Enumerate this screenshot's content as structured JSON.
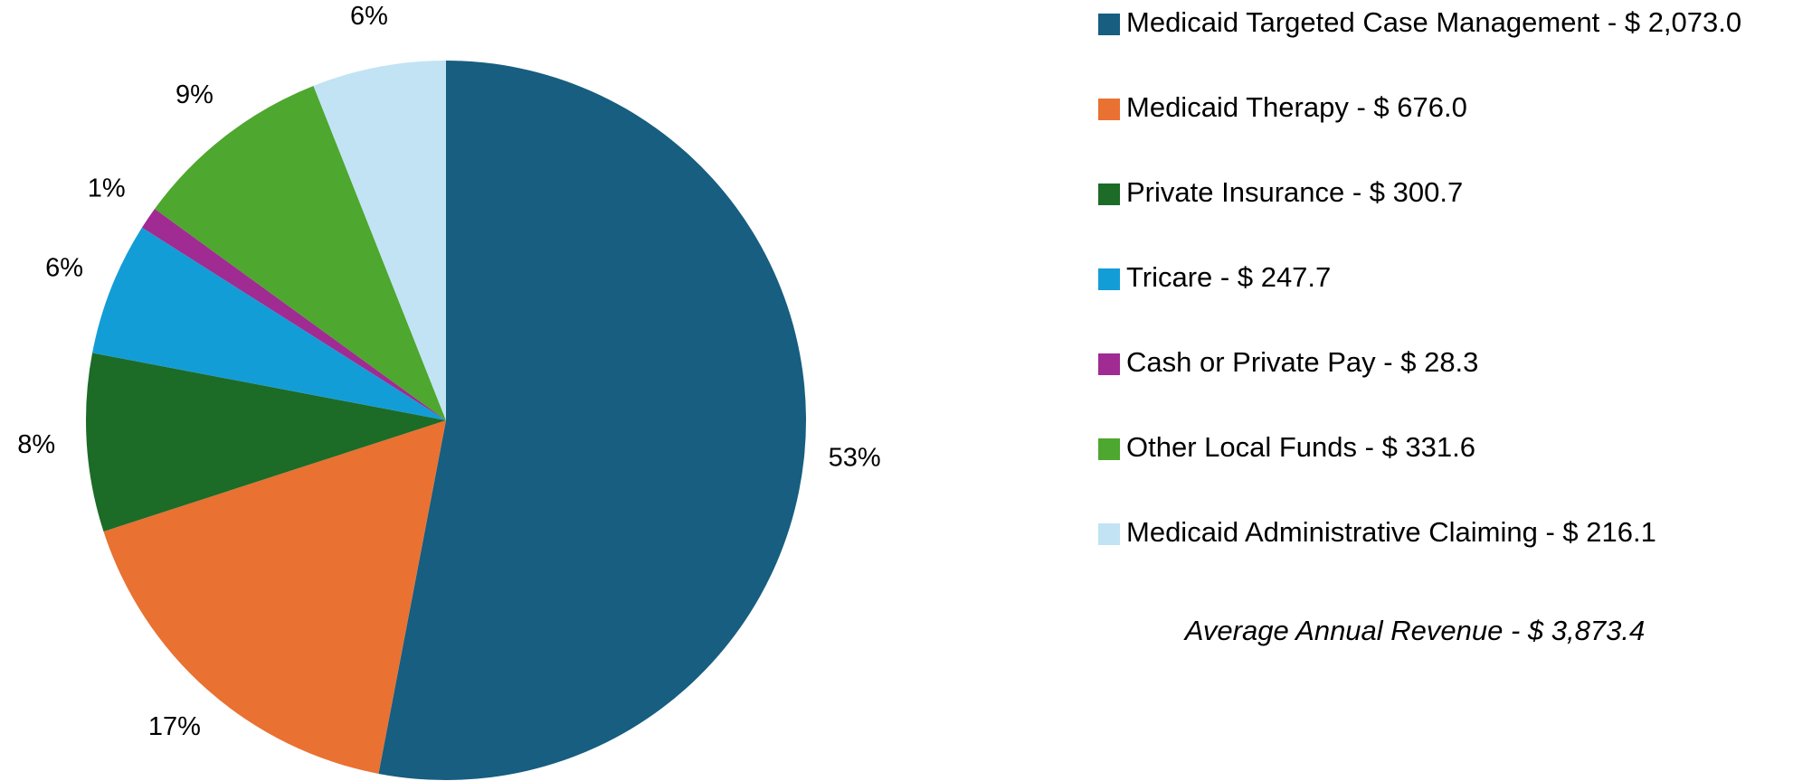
{
  "chart_data": {
    "type": "pie",
    "categories": [
      "Medicaid Targeted Case Management - $ 2,073.0",
      "Medicaid Therapy - $ 676.0",
      "Private Insurance - $ 300.7",
      "Tricare - $ 247.7",
      "Cash or Private Pay - $ 28.3",
      "Other Local Funds - $ 331.6",
      "Medicaid Administrative Claiming - $ 216.1"
    ],
    "values": [
      53,
      17,
      8,
      6,
      1,
      9,
      6
    ],
    "value_labels": [
      "53%",
      "17%",
      "8%",
      "6%",
      "1%",
      "9%",
      "6%"
    ],
    "colors": [
      "#175e80",
      "#e97132",
      "#1c6b27",
      "#139dd6",
      "#a02b93",
      "#4ea72e",
      "#c1e3f4"
    ],
    "annotation": "Average Annual Revenue - $ 3,873.4",
    "legend": "right"
  }
}
